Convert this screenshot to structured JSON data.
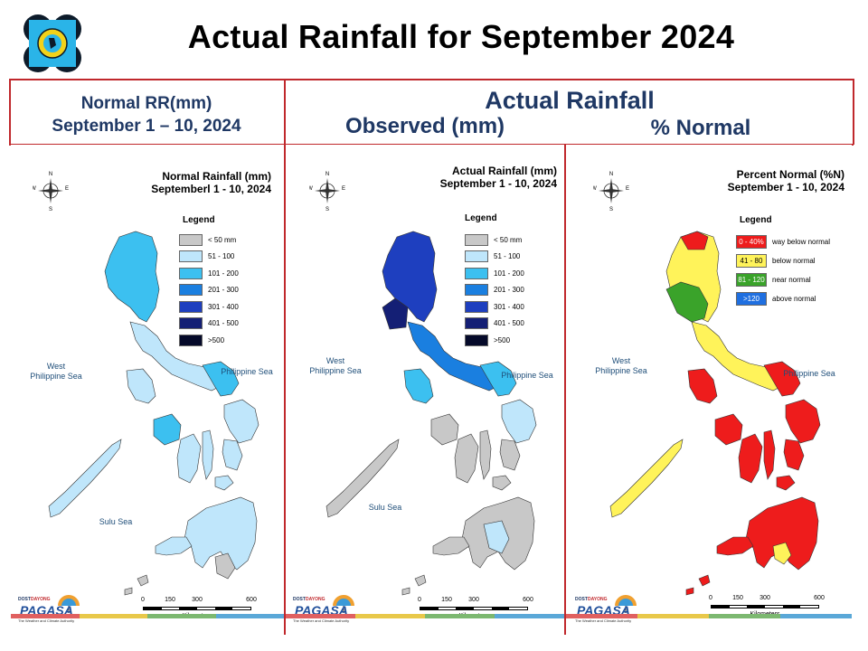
{
  "slide_title": "Actual Rainfall for September 2024",
  "headers": {
    "normal_line1": "Normal RR(mm)",
    "normal_line2": "September 1 – 10, 2024",
    "actual": "Actual Rainfall",
    "observed": "Observed (mm)",
    "percent": "% Normal"
  },
  "panels": [
    {
      "title_line1": "Normal Rainfall (mm)",
      "title_line2": "Septemberl 1 - 10, 2024",
      "legend_title": "Legend",
      "legend": [
        {
          "label": "< 50 mm",
          "color": "#c8c8c8"
        },
        {
          "label": "51 - 100",
          "color": "#bfe6fb"
        },
        {
          "label": "101 - 200",
          "color": "#3cc0f0"
        },
        {
          "label": "201 - 300",
          "color": "#1a7fe0"
        },
        {
          "label": "301 - 400",
          "color": "#1e3fbf"
        },
        {
          "label": "401 - 500",
          "color": "#141f75"
        },
        {
          "label": ">500",
          "color": "#050a2a"
        }
      ]
    },
    {
      "title_line1": "Actual Rainfall (mm)",
      "title_line2": "September 1 - 10, 2024",
      "legend_title": "Legend",
      "legend": [
        {
          "label": "< 50 mm",
          "color": "#c8c8c8"
        },
        {
          "label": "51 - 100",
          "color": "#bfe6fb"
        },
        {
          "label": "101 - 200",
          "color": "#3cc0f0"
        },
        {
          "label": "201 - 300",
          "color": "#1a7fe0"
        },
        {
          "label": "301 - 400",
          "color": "#1e3fbf"
        },
        {
          "label": "401 - 500",
          "color": "#141f75"
        },
        {
          "label": ">500",
          "color": "#050a2a"
        }
      ]
    },
    {
      "title_line1": "Percent Normal (%N)",
      "title_line2": "September 1 - 10, 2024",
      "legend_title": "Legend",
      "legend": [
        {
          "code": "0 - 40%",
          "label": "way below normal",
          "color": "#ee1c1c"
        },
        {
          "code": "41 - 80",
          "label": "below normal",
          "color": "#fff35a"
        },
        {
          "code": "81 - 120",
          "label": "near normal",
          "color": "#3aa32a"
        },
        {
          "code": ">120",
          "label": "above normal",
          "color": "#1f6fe0"
        }
      ]
    }
  ],
  "map_labels": {
    "west_sea_1": "West",
    "west_sea_2": "Philippine Sea",
    "philippine_sea": "Philippine Sea",
    "sulu_sea": "Sulu Sea",
    "compass_n": "N",
    "compass_s": "S",
    "compass_e": "E",
    "compass_w": "W"
  },
  "scale": {
    "ticks": [
      "0",
      "150",
      "300",
      "600"
    ],
    "unit": "Kilometers"
  },
  "branding": {
    "agency": "PAGASA",
    "dayong": "DAYONG",
    "dost": "DOST",
    "tagline": "The Weather and Climate Authority"
  },
  "colors": {
    "frame": "#c0282c",
    "header_text": "#1f3864",
    "strip": [
      "#e06060",
      "#e8c84a",
      "#7cb870",
      "#5aa8d8"
    ]
  }
}
